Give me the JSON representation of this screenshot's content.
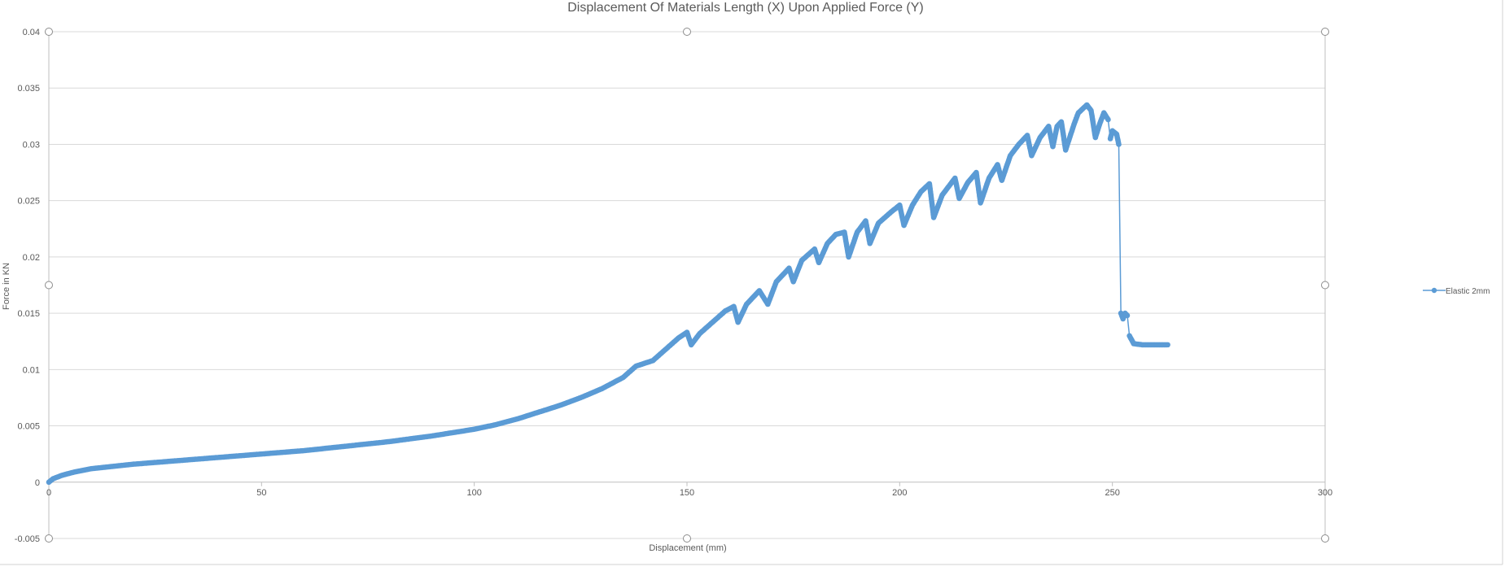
{
  "chart_data": {
    "type": "scatter",
    "title": "Displacement Of Materials Length (X) Upon Applied Force (Y)",
    "xlabel": "Displacement (mm)",
    "ylabel": "Force in KN",
    "xlim": [
      0,
      300
    ],
    "ylim": [
      -0.005,
      0.04
    ],
    "x_ticks": [
      0,
      50,
      100,
      150,
      200,
      250,
      300
    ],
    "y_ticks": [
      -0.005,
      0,
      0.005,
      0.01,
      0.015,
      0.02,
      0.025,
      0.03,
      0.035,
      0.04
    ],
    "x_tick_labels": [
      "0",
      "50",
      "100",
      "150",
      "200",
      "250",
      "300"
    ],
    "y_tick_labels": [
      "-0.005",
      "0",
      "0.005",
      "0.01",
      "0.015",
      "0.02",
      "0.025",
      "0.03",
      "0.035",
      "0.04"
    ],
    "grid": "horizontal",
    "legend_position": "right",
    "series_color": "#5B9BD5",
    "series": [
      {
        "name": "Elastic 2mm",
        "points": [
          [
            0,
            0
          ],
          [
            1,
            0.0003
          ],
          [
            3,
            0.0006
          ],
          [
            6,
            0.0009
          ],
          [
            10,
            0.0012
          ],
          [
            15,
            0.0014
          ],
          [
            20,
            0.0016
          ],
          [
            30,
            0.0019
          ],
          [
            40,
            0.0022
          ],
          [
            50,
            0.0025
          ],
          [
            60,
            0.0028
          ],
          [
            70,
            0.0032
          ],
          [
            80,
            0.0036
          ],
          [
            90,
            0.0041
          ],
          [
            100,
            0.0047
          ],
          [
            105,
            0.0051
          ],
          [
            110,
            0.0056
          ],
          [
            115,
            0.0062
          ],
          [
            120,
            0.0068
          ],
          [
            125,
            0.0075
          ],
          [
            130,
            0.0083
          ],
          [
            135,
            0.0093
          ],
          [
            138,
            0.0103
          ],
          [
            142,
            0.0108
          ],
          [
            145,
            0.0118
          ],
          [
            148,
            0.0128
          ],
          [
            150,
            0.0133
          ],
          [
            151,
            0.0122
          ],
          [
            153,
            0.0132
          ],
          [
            156,
            0.0142
          ],
          [
            159,
            0.0152
          ],
          [
            161,
            0.0156
          ],
          [
            162,
            0.0142
          ],
          [
            164,
            0.0158
          ],
          [
            167,
            0.017
          ],
          [
            169,
            0.0158
          ],
          [
            171,
            0.0178
          ],
          [
            174,
            0.019
          ],
          [
            175,
            0.0178
          ],
          [
            177,
            0.0197
          ],
          [
            180,
            0.0207
          ],
          [
            181,
            0.0195
          ],
          [
            183,
            0.0212
          ],
          [
            185,
            0.022
          ],
          [
            187,
            0.0222
          ],
          [
            188,
            0.02
          ],
          [
            190,
            0.0222
          ],
          [
            192,
            0.0232
          ],
          [
            193,
            0.0212
          ],
          [
            195,
            0.023
          ],
          [
            198,
            0.024
          ],
          [
            200,
            0.0246
          ],
          [
            201,
            0.0228
          ],
          [
            203,
            0.0246
          ],
          [
            205,
            0.0258
          ],
          [
            207,
            0.0265
          ],
          [
            208,
            0.0235
          ],
          [
            210,
            0.0255
          ],
          [
            213,
            0.027
          ],
          [
            214,
            0.0252
          ],
          [
            216,
            0.0266
          ],
          [
            218,
            0.0275
          ],
          [
            219,
            0.0248
          ],
          [
            221,
            0.027
          ],
          [
            223,
            0.0282
          ],
          [
            224,
            0.0268
          ],
          [
            226,
            0.029
          ],
          [
            228,
            0.03
          ],
          [
            230,
            0.0308
          ],
          [
            231,
            0.029
          ],
          [
            233,
            0.0306
          ],
          [
            235,
            0.0316
          ],
          [
            236,
            0.0298
          ],
          [
            237,
            0.0316
          ],
          [
            238,
            0.032
          ],
          [
            239,
            0.0295
          ],
          [
            241,
            0.0318
          ],
          [
            242,
            0.0328
          ],
          [
            244,
            0.0335
          ],
          [
            245,
            0.033
          ],
          [
            246,
            0.0306
          ],
          [
            247,
            0.0318
          ],
          [
            248,
            0.0328
          ],
          [
            249,
            0.0322
          ],
          [
            249.5,
            0.0305
          ],
          [
            250,
            0.0312
          ],
          [
            251,
            0.0309
          ],
          [
            251.5,
            0.03
          ],
          [
            252,
            0.015
          ],
          [
            252.5,
            0.0145
          ],
          [
            253,
            0.015
          ],
          [
            253.5,
            0.0148
          ],
          [
            254,
            0.013
          ],
          [
            255,
            0.0123
          ],
          [
            257,
            0.0122
          ],
          [
            260,
            0.0122
          ],
          [
            263,
            0.0122
          ]
        ]
      }
    ]
  }
}
